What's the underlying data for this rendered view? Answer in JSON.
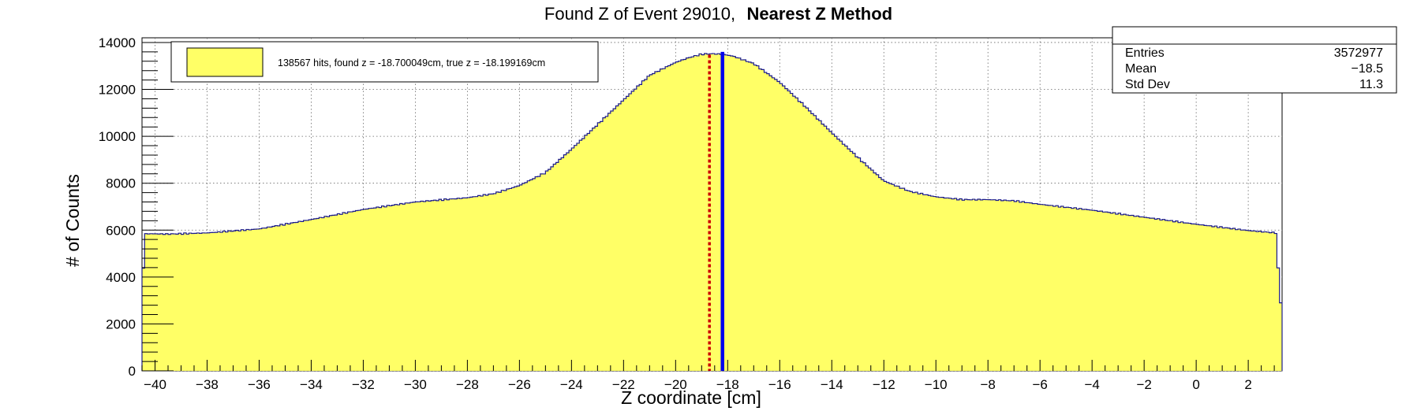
{
  "chart_data": {
    "type": "bar",
    "title": "Found Z of Event 29010,",
    "title_method": "Nearest Z Method",
    "xlabel": "Z coordinate [cm]",
    "ylabel": "# of Counts",
    "xlim": [
      -40.5,
      3.3
    ],
    "ylim": [
      0,
      14200
    ],
    "x_ticks": [
      -40,
      -38,
      -36,
      -34,
      -32,
      -30,
      -28,
      -26,
      -24,
      -22,
      -20,
      -18,
      -16,
      -14,
      -12,
      -10,
      -8,
      -6,
      -4,
      -2,
      0,
      2
    ],
    "y_ticks": [
      0,
      2000,
      4000,
      6000,
      8000,
      10000,
      12000,
      14000
    ],
    "grid": true,
    "fill_color": "#ffff66",
    "line_color": "#1a1a8c",
    "profile": {
      "x": [
        -40.5,
        -40.4,
        -39.5,
        -38.0,
        -36.0,
        -34.0,
        -32.0,
        -30.0,
        -28.0,
        -27.0,
        -26.0,
        -25.0,
        -24.0,
        -23.0,
        -22.0,
        -21.0,
        -20.0,
        -19.5,
        -19.0,
        -18.6,
        -18.2,
        -17.8,
        -17.0,
        -16.0,
        -15.0,
        -14.0,
        -13.0,
        -12.0,
        -11.0,
        -10.0,
        -9.0,
        -8.0,
        -7.0,
        -6.0,
        -4.0,
        -2.0,
        0.0,
        2.0,
        3.1,
        3.2,
        3.3
      ],
      "y": [
        2900,
        5850,
        5830,
        5880,
        6050,
        6450,
        6880,
        7200,
        7380,
        7550,
        7900,
        8450,
        9450,
        10500,
        11550,
        12600,
        13150,
        13350,
        13500,
        13520,
        13500,
        13420,
        13100,
        12300,
        11250,
        10150,
        9100,
        8100,
        7650,
        7420,
        7300,
        7300,
        7250,
        7100,
        6850,
        6550,
        6250,
        5980,
        5880,
        2900,
        2900
      ]
    },
    "found_z": -18.700049,
    "true_z": -18.199169,
    "found_z_color": "#cc0000",
    "true_z_color": "#0000ee",
    "legend": {
      "placement": "top-left",
      "entry": "138567 hits, found z = -18.700049cm, true z = -18.199169cm"
    },
    "stats": {
      "placement": "top-right",
      "rows": [
        {
          "label": "Entries",
          "value": "3572977"
        },
        {
          "label": "Mean",
          "value": "−18.5"
        },
        {
          "label": "Std Dev",
          "value": "11.3"
        }
      ]
    }
  }
}
